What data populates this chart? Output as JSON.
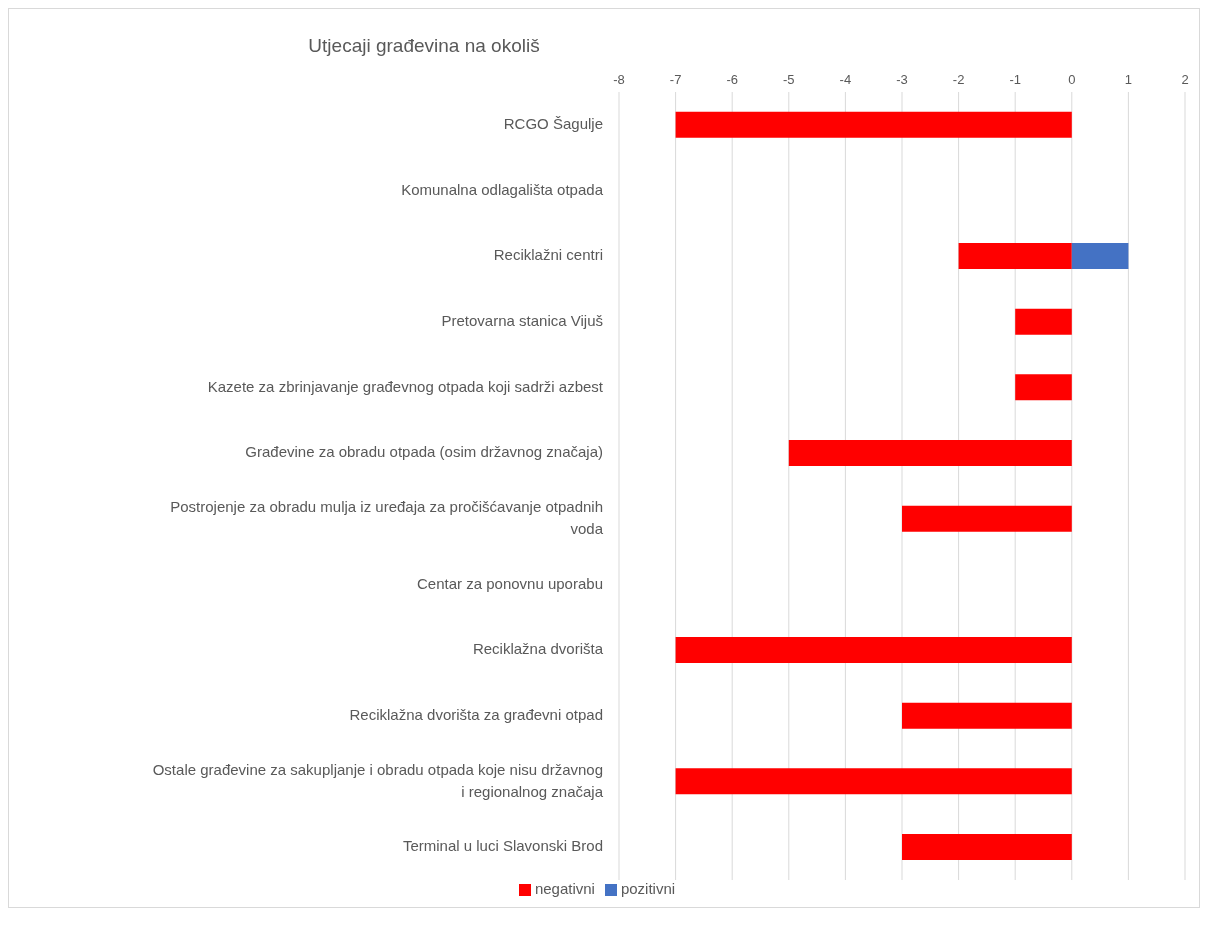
{
  "chart_data": {
    "type": "bar",
    "orientation": "horizontal",
    "stacked": true,
    "title": "Utjecaji građevina na okoliš",
    "categories": [
      "RCGO Šagulje",
      "Komunalna odlagališta otpada",
      "Reciklažni centri",
      "Pretovarna stanica Vijuš",
      "Kazete za zbrinjavanje građevnog otpada koji sadrži azbest",
      "Građevine za obradu otpada (osim državnog značaja)",
      "Postrojenje za obradu mulja iz uređaja za pročišćavanje otpadnih voda",
      "Centar za ponovnu uporabu",
      "Reciklažna dvorišta",
      "Reciklažna dvorišta za građevni otpad",
      "Ostale građevine za sakupljanje i obradu otpada koje nisu državnog i regionalnog značaja",
      "Terminal u luci Slavonski Brod"
    ],
    "series": [
      {
        "name": "negativni",
        "color": "#ff0000",
        "values": [
          -7,
          null,
          -2,
          -1,
          -1,
          -5,
          -3,
          null,
          -7,
          -3,
          -7,
          -3
        ]
      },
      {
        "name": "pozitivni",
        "color": "#4472c4",
        "values": [
          null,
          null,
          1,
          null,
          null,
          null,
          null,
          null,
          null,
          null,
          null,
          null
        ]
      }
    ],
    "xlim": [
      -8,
      2
    ],
    "xticks": [
      -8,
      -7,
      -6,
      -5,
      -4,
      -3,
      -2,
      -1,
      0,
      1,
      2
    ],
    "grid": "x",
    "legend": "bottom"
  }
}
